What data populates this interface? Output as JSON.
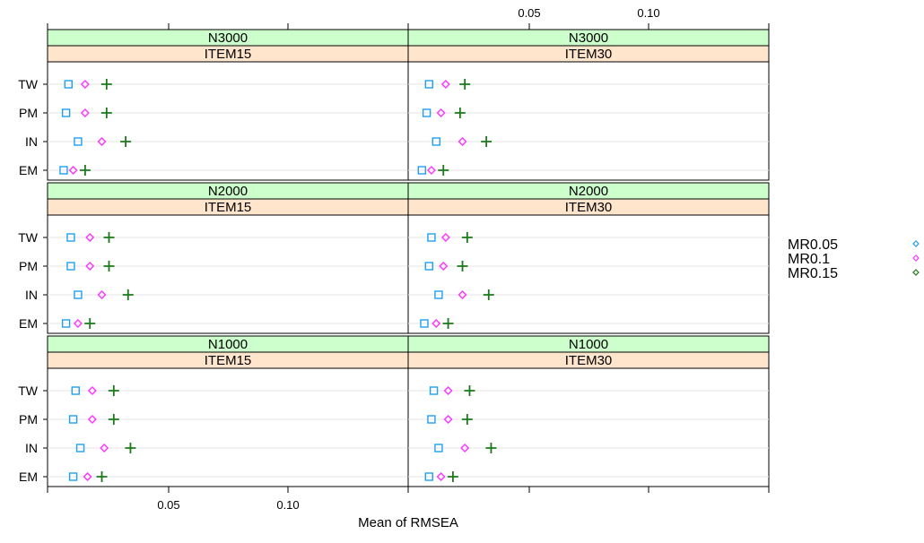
{
  "chart_data": {
    "type": "dotplot",
    "xlabel": "Mean of RMSEA",
    "x_ticks": [
      0.05,
      0.1
    ],
    "x_tick_labels": [
      "0.05",
      "0.10"
    ],
    "xlim": [
      0.0,
      0.148
    ],
    "categories": [
      "TW",
      "PM",
      "IN",
      "EM"
    ],
    "series": [
      {
        "name": "MR0.05",
        "color": "#1f9ff2",
        "marker": "square"
      },
      {
        "name": "MR0.1",
        "color": "#ff33ff",
        "marker": "diamond"
      },
      {
        "name": "MR0.15",
        "color": "#1a7a1a",
        "marker": "plus"
      }
    ],
    "strip_colors": {
      "n": "#ccffcc",
      "item": "#ffe5cc"
    },
    "panels": [
      {
        "n": "N3000",
        "item": "ITEM15",
        "values": {
          "TW": [
            0.008,
            0.015,
            0.024
          ],
          "PM": [
            0.007,
            0.015,
            0.024
          ],
          "IN": [
            0.012,
            0.022,
            0.032
          ],
          "EM": [
            0.006,
            0.01,
            0.015
          ]
        }
      },
      {
        "n": "N3000",
        "item": "ITEM30",
        "values": {
          "TW": [
            0.008,
            0.015,
            0.023
          ],
          "PM": [
            0.007,
            0.013,
            0.021
          ],
          "IN": [
            0.011,
            0.022,
            0.032
          ],
          "EM": [
            0.005,
            0.009,
            0.014
          ]
        }
      },
      {
        "n": "N2000",
        "item": "ITEM15",
        "values": {
          "TW": [
            0.009,
            0.017,
            0.025
          ],
          "PM": [
            0.009,
            0.017,
            0.025
          ],
          "IN": [
            0.012,
            0.022,
            0.033
          ],
          "EM": [
            0.007,
            0.012,
            0.017
          ]
        }
      },
      {
        "n": "N2000",
        "item": "ITEM30",
        "values": {
          "TW": [
            0.009,
            0.015,
            0.024
          ],
          "PM": [
            0.008,
            0.014,
            0.022
          ],
          "IN": [
            0.012,
            0.022,
            0.033
          ],
          "EM": [
            0.006,
            0.011,
            0.016
          ]
        }
      },
      {
        "n": "N1000",
        "item": "ITEM15",
        "values": {
          "TW": [
            0.011,
            0.018,
            0.027
          ],
          "PM": [
            0.01,
            0.018,
            0.027
          ],
          "IN": [
            0.013,
            0.023,
            0.034
          ],
          "EM": [
            0.01,
            0.016,
            0.022
          ]
        }
      },
      {
        "n": "N1000",
        "item": "ITEM30",
        "values": {
          "TW": [
            0.01,
            0.016,
            0.025
          ],
          "PM": [
            0.009,
            0.016,
            0.024
          ],
          "IN": [
            0.012,
            0.023,
            0.034
          ],
          "EM": [
            0.008,
            0.013,
            0.018
          ]
        }
      }
    ],
    "legend_position": "right"
  }
}
